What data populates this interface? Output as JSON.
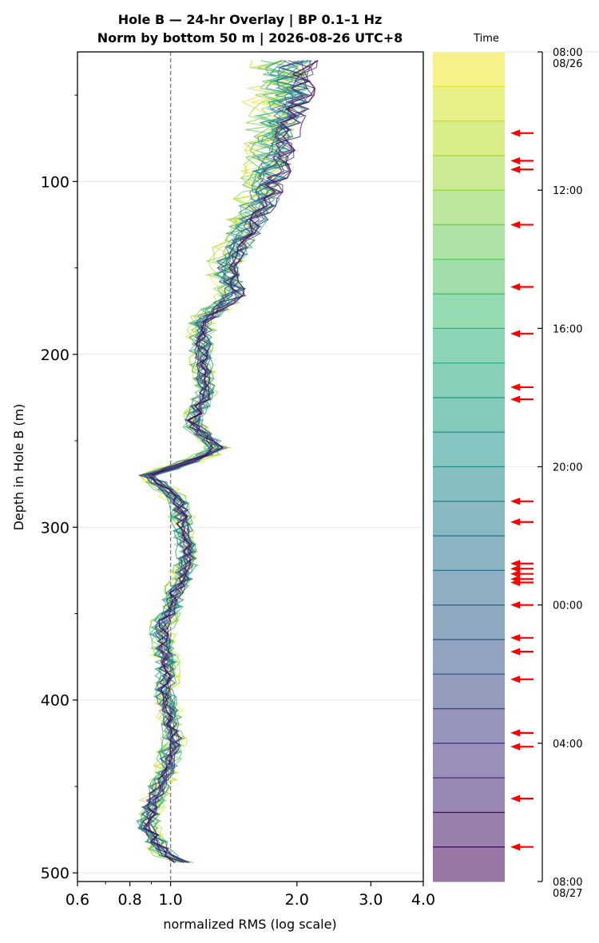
{
  "chart_data": {
    "type": "line",
    "title": "Hole B — 24-hr Overlay  |  BP 0.1–1 Hz",
    "subtitle": "Norm by bottom 50 m  |  2026-08-26 UTC+8",
    "xlabel": "normalized RMS  (log scale)",
    "ylabel": "Depth in Hole B (m)",
    "xscale": "log",
    "xlim": [
      0.6,
      4.0
    ],
    "ylim": [
      505,
      25
    ],
    "xticks": [
      {
        "value": 0.6,
        "label": "0.6"
      },
      {
        "value": 0.8,
        "label": "0.8"
      },
      {
        "value": 1.0,
        "label": "1.0"
      },
      {
        "value": 2.0,
        "label": "2.0"
      },
      {
        "value": 3.0,
        "label": "3.0"
      },
      {
        "value": 4.0,
        "label": "4.0"
      }
    ],
    "yticks": [
      {
        "value": 100,
        "label": "100"
      },
      {
        "value": 200,
        "label": "200"
      },
      {
        "value": 300,
        "label": "300"
      },
      {
        "value": 400,
        "label": "400"
      },
      {
        "value": 500,
        "label": "500"
      }
    ],
    "reference_line": {
      "x": 1.0,
      "style": "dashed"
    },
    "grid": true,
    "series_count": 24,
    "series_note_depths": [
      30,
      50,
      70,
      90,
      110,
      130,
      150,
      165,
      180,
      200,
      220,
      240,
      255,
      270,
      285,
      300,
      320,
      340,
      360,
      380,
      400,
      420,
      440,
      460,
      475,
      490,
      497
    ],
    "profile_mean": [
      1.95,
      1.9,
      1.8,
      1.75,
      1.65,
      1.5,
      1.35,
      1.42,
      1.2,
      1.18,
      1.22,
      1.12,
      1.3,
      0.88,
      1.05,
      1.07,
      1.1,
      1.02,
      0.95,
      0.98,
      0.97,
      1.02,
      0.98,
      0.9,
      0.88,
      0.98,
      1.12
    ],
    "colorbar": {
      "label": "Time",
      "bins": 24,
      "ticks": [
        {
          "hours": 0,
          "label": "08:00",
          "sublabel": "08/26"
        },
        {
          "hours": 4,
          "label": "12:00",
          "sublabel": ""
        },
        {
          "hours": 8,
          "label": "16:00",
          "sublabel": ""
        },
        {
          "hours": 12,
          "label": "20:00",
          "sublabel": ""
        },
        {
          "hours": 16,
          "label": "00:00",
          "sublabel": ""
        },
        {
          "hours": 20,
          "label": "04:00",
          "sublabel": ""
        },
        {
          "hours": 24,
          "label": "08:00",
          "sublabel": "08/27"
        }
      ],
      "colormap": "viridis-reversed",
      "event_arrow_hours": [
        2.35,
        3.15,
        3.4,
        5.0,
        6.8,
        8.15,
        9.7,
        10.05,
        13.0,
        13.6,
        14.8,
        14.95,
        15.1,
        15.25,
        15.35,
        16.0,
        16.95,
        17.35,
        18.15,
        19.7,
        20.1,
        21.6,
        23.0
      ],
      "arrow_color": "#ff0000"
    }
  }
}
